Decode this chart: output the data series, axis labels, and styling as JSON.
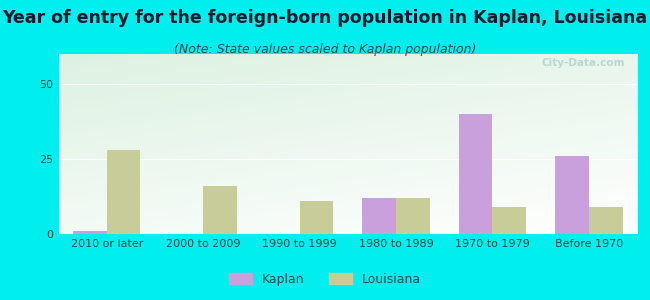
{
  "title": "Year of entry for the foreign-born population in Kaplan, Louisiana",
  "subtitle": "(Note: State values scaled to Kaplan population)",
  "categories": [
    "2010 or later",
    "2000 to 2009",
    "1990 to 1999",
    "1980 to 1989",
    "1970 to 1979",
    "Before 1970"
  ],
  "kaplan_values": [
    1,
    0,
    0,
    12,
    40,
    26
  ],
  "louisiana_values": [
    28,
    16,
    11,
    12,
    9,
    9
  ],
  "kaplan_color": "#c9a0dc",
  "louisiana_color": "#c8cc99",
  "background_outer": "#00eeee",
  "ylim": [
    0,
    60
  ],
  "yticks": [
    0,
    25,
    50
  ],
  "bar_width": 0.35,
  "title_fontsize": 12.5,
  "subtitle_fontsize": 9,
  "tick_fontsize": 8,
  "legend_fontsize": 9,
  "title_color": "#1a1a2e",
  "subtitle_color": "#2a4a4a",
  "tick_color": "#2a4a4a",
  "watermark_text": "City-Data.com"
}
